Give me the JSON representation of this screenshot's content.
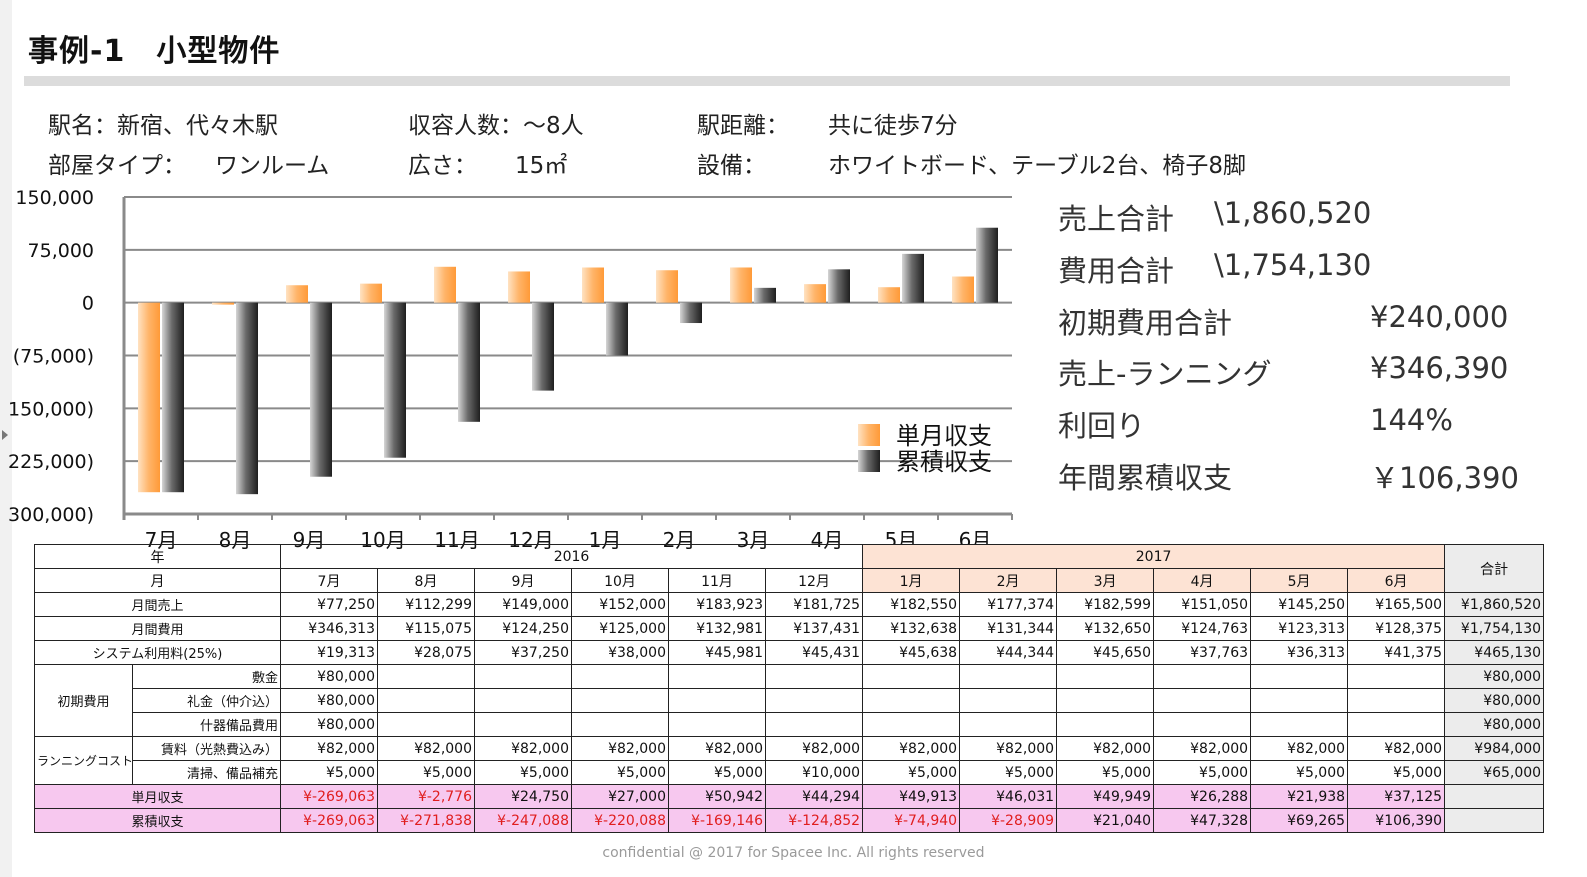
{
  "header": {
    "title": "事例-1　小型物件"
  },
  "info": {
    "station_label": "駅名：新宿、代々木駅",
    "capacity_label": "収容人数：～8人",
    "distance_label": "駅距離：",
    "distance_value": "共に徒歩7分",
    "room_label": "部屋タイプ：",
    "room_value": "ワンルーム",
    "area_label": "広さ：",
    "area_value": "15㎡",
    "equipment_label": "設備：",
    "equipment_value": "ホワイトボード、テーブル2台、椅子8脚"
  },
  "chart_data": {
    "type": "bar",
    "categories": [
      "7月",
      "8月",
      "9月",
      "10月",
      "11月",
      "12月",
      "1月",
      "2月",
      "3月",
      "4月",
      "5月",
      "6月"
    ],
    "series": [
      {
        "name": "単月収支",
        "values": [
          -269063,
          -2776,
          24750,
          27000,
          50942,
          44294,
          49913,
          46031,
          49949,
          26288,
          21938,
          37125
        ]
      },
      {
        "name": "累積収支",
        "values": [
          -269063,
          -271838,
          -247088,
          -220088,
          -169146,
          -124852,
          -74940,
          -28909,
          21040,
          47328,
          69265,
          106390
        ]
      }
    ],
    "ylim": [
      -300000,
      150000
    ],
    "yticks": [
      150000,
      75000,
      0,
      -75000,
      -150000,
      -225000,
      -300000
    ],
    "ytick_labels": [
      "150,000",
      "75,000",
      "0",
      "(75,000)",
      "150,000)",
      "225,000)",
      "300,000)"
    ],
    "legend_position": "bottom-right",
    "grid": true,
    "colors": {
      "monthly": "#ffb060",
      "cumulative": "#333333"
    }
  },
  "summary": [
    {
      "label": "売上合計",
      "value": "\\1,860,520"
    },
    {
      "label": "費用合計",
      "value": "\\1,754,130"
    },
    {
      "label": "初期費用合計",
      "value": "¥240,000"
    },
    {
      "label": "売上-ランニング",
      "value": "¥346,390"
    },
    {
      "label": "利回り",
      "value": "144%"
    },
    {
      "label": "年間累積収支",
      "value": "￥106,390"
    }
  ],
  "table": {
    "year_label": "年",
    "month_label": "月",
    "total_label": "合計",
    "year_2016": "2016",
    "year_2017": "2017",
    "months": [
      "7月",
      "8月",
      "9月",
      "10月",
      "11月",
      "12月",
      "1月",
      "2月",
      "3月",
      "4月",
      "5月",
      "6月"
    ],
    "rows": {
      "sales": {
        "label": "月間売上",
        "values": [
          "¥77,250",
          "¥112,299",
          "¥149,000",
          "¥152,000",
          "¥183,923",
          "¥181,725",
          "¥182,550",
          "¥177,374",
          "¥182,599",
          "¥151,050",
          "¥145,250",
          "¥165,500"
        ],
        "total": "¥1,860,520"
      },
      "cost": {
        "label": "月間費用",
        "values": [
          "¥346,313",
          "¥115,075",
          "¥124,250",
          "¥125,000",
          "¥132,981",
          "¥137,431",
          "¥132,638",
          "¥131,344",
          "¥132,650",
          "¥124,763",
          "¥123,313",
          "¥128,375"
        ],
        "total": "¥1,754,130"
      },
      "system_fee": {
        "label": "システム利用料(25%)",
        "values": [
          "¥19,313",
          "¥28,075",
          "¥37,250",
          "¥38,000",
          "¥45,981",
          "¥45,431",
          "¥45,638",
          "¥44,344",
          "¥45,650",
          "¥37,763",
          "¥36,313",
          "¥41,375"
        ],
        "total": "¥465,130"
      },
      "initial_group": "初期費用",
      "deposit": {
        "label": "敷金",
        "value": "¥80,000",
        "total": "¥80,000"
      },
      "key_money": {
        "label": "礼金（仲介込）",
        "value": "¥80,000",
        "total": "¥80,000"
      },
      "furniture": {
        "label": "什器備品費用",
        "value": "¥80,000",
        "total": "¥80,000"
      },
      "running_group": "ランニングコスト",
      "rent": {
        "label": "賃料（光熱費込み）",
        "values": [
          "¥82,000",
          "¥82,000",
          "¥82,000",
          "¥82,000",
          "¥82,000",
          "¥82,000",
          "¥82,000",
          "¥82,000",
          "¥82,000",
          "¥82,000",
          "¥82,000",
          "¥82,000"
        ],
        "total": "¥984,000"
      },
      "cleaning": {
        "label": "清掃、備品補充",
        "values": [
          "¥5,000",
          "¥5,000",
          "¥5,000",
          "¥5,000",
          "¥5,000",
          "¥10,000",
          "¥5,000",
          "¥5,000",
          "¥5,000",
          "¥5,000",
          "¥5,000",
          "¥5,000"
        ],
        "total": "¥65,000"
      },
      "monthly_balance": {
        "label": "単月収支",
        "values": [
          "¥-269,063",
          "¥-2,776",
          "¥24,750",
          "¥27,000",
          "¥50,942",
          "¥44,294",
          "¥49,913",
          "¥46,031",
          "¥49,949",
          "¥26,288",
          "¥21,938",
          "¥37,125"
        ]
      },
      "cumulative_balance": {
        "label": "累積収支",
        "values": [
          "¥-269,063",
          "¥-271,838",
          "¥-247,088",
          "¥-220,088",
          "¥-169,146",
          "¥-124,852",
          "¥-74,940",
          "¥-28,909",
          "¥21,040",
          "¥47,328",
          "¥69,265",
          "¥106,390"
        ]
      }
    }
  },
  "footer": "confidential @ 2017  for  Spacee Inc. All rights reserved"
}
